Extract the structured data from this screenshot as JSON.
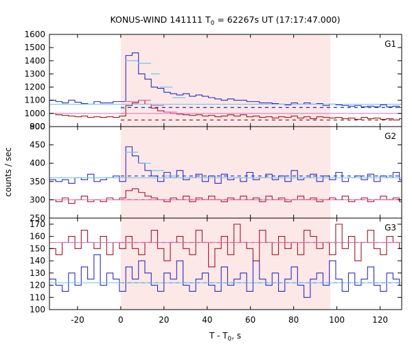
{
  "chart_data": {
    "type": "line",
    "title": "KONUS-WIND 141111 T",
    "title_sub": "0",
    "title_rest": " = 62267s UT (17:17:47.000)",
    "xlabel": "T - T",
    "xlabel_sub": "0",
    "xlabel_rest": ", s",
    "ylabel": "counts / sec",
    "xlim": [
      -33,
      130
    ],
    "xticks": [
      -20,
      0,
      20,
      40,
      60,
      80,
      100,
      120
    ],
    "highlight_interval": [
      0,
      97
    ],
    "colors": {
      "highlight": "#fde8e8",
      "hard_band": "#2b2bbf",
      "soft_band": "#a01525",
      "fine_hard": "#6cc5e6",
      "fine_soft": "#e26cb8",
      "bg_hard": "#2222aa",
      "bg_soft": "#8b0a12"
    },
    "panels": [
      {
        "label": "G1",
        "ylim": [
          900,
          1600
        ],
        "yticks": [
          900,
          1000,
          1100,
          1200,
          1300,
          1400,
          1500,
          1600
        ],
        "extra_bottom_tick": 800,
        "step": 2.944,
        "background": {
          "hard": 1045,
          "soft": 950
        },
        "series": [
          {
            "name": "",
            "role": "hard_band",
            "start": -33,
            "values": [
              1100,
              1090,
              1080,
              1100,
              1085,
              1075,
              1070,
              1090,
              1080,
              1080,
              1090,
              1090,
              1440,
              1460,
              1300,
              1260,
              1200,
              1190,
              1160,
              1150,
              1140,
              1150,
              1130,
              1140,
              1130,
              1120,
              1110,
              1100,
              1110,
              1100,
              1100,
              1090,
              1090,
              1080,
              1080,
              1075,
              1070,
              1065,
              1080,
              1070,
              1080,
              1070,
              1075,
              1060,
              1070,
              1065,
              1060,
              1055,
              1060,
              1050,
              1055,
              1050,
              1065,
              1050,
              1055,
              1045,
              1050,
              1040,
              1050,
              1045,
              1040,
              1050,
              1035,
              1045,
              1040,
              1050
            ]
          },
          {
            "name": "",
            "role": "soft_band",
            "start": -33,
            "values": [
              1000,
              990,
              985,
              980,
              975,
              980,
              970,
              975,
              970,
              975,
              970,
              980,
              1060,
              1080,
              1100,
              1070,
              1040,
              1020,
              1010,
              1000,
              995,
              990,
              985,
              990,
              980,
              985,
              975,
              980,
              990,
              980,
              990,
              975,
              980,
              970,
              975,
              965,
              975,
              970,
              980,
              965,
              975,
              960,
              975,
              970,
              965,
              970,
              960,
              965,
              955,
              970,
              960,
              965,
              955,
              960,
              950,
              960,
              955,
              950,
              960,
              955,
              950,
              945,
              955,
              950,
              945,
              950
            ]
          },
          {
            "name": "",
            "role": "fine_hard",
            "start": -33,
            "step": 9.0,
            "values": [
              1070,
              1070,
              1070,
              1070,
              1070,
              1070,
              1070,
              1070,
              1070,
              1070,
              1070,
              1070,
              1070,
              1070,
              1070,
              1070,
              1070,
              1070,
              1070,
              1070
            ]
          },
          {
            "name": "",
            "role": "fine_soft",
            "start": -33,
            "step": 9.0,
            "values": [
              1000,
              1000,
              1000,
              1000,
              1000,
              1000,
              1000,
              1000,
              1000,
              1000,
              1000,
              1000,
              1000,
              1000,
              1000,
              1000,
              1000,
              1000,
              1000,
              1000
            ]
          }
        ],
        "fine_hard_burst": [
          {
            "x": [
              0,
              2
            ],
            "y": 1040
          },
          {
            "x": [
              2,
              8
            ],
            "y": 1400
          },
          {
            "x": [
              8,
              14
            ],
            "y": 1380
          },
          {
            "x": [
              14,
              18
            ],
            "y": 1300
          },
          {
            "x": [
              18,
              24
            ],
            "y": 1200
          },
          {
            "x": [
              24,
              30
            ],
            "y": 1120
          }
        ],
        "fine_soft_burst": [
          {
            "x": [
              0,
              2
            ],
            "y": 1000
          },
          {
            "x": [
              2,
              8
            ],
            "y": 1090
          },
          {
            "x": [
              8,
              14
            ],
            "y": 1100
          },
          {
            "x": [
              14,
              20
            ],
            "y": 1060
          },
          {
            "x": [
              20,
              26
            ],
            "y": 1010
          }
        ]
      },
      {
        "label": "G2",
        "ylim": [
          250,
          500
        ],
        "yticks": [
          250,
          300,
          350,
          400,
          450
        ],
        "step": 2.944,
        "background": {
          "hard": 365,
          "soft": 300
        },
        "series": [
          {
            "name": "",
            "role": "hard_band",
            "start": -33,
            "values": [
              355,
              350,
              355,
              345,
              360,
              355,
              370,
              350,
              355,
              360,
              365,
              350,
              445,
              420,
              400,
              380,
              365,
              350,
              375,
              360,
              380,
              355,
              360,
              370,
              350,
              365,
              345,
              370,
              355,
              360,
              350,
              375,
              355,
              360,
              370,
              355,
              365,
              350,
              380,
              355,
              360,
              370,
              350,
              365,
              355,
              375,
              350,
              360,
              365,
              355,
              370,
              350,
              365,
              360,
              375,
              355,
              360,
              350,
              370,
              360,
              365,
              355,
              370,
              360,
              350,
              365
            ]
          },
          {
            "name": "",
            "role": "soft_band",
            "start": -33,
            "values": [
              300,
              295,
              305,
              290,
              300,
              310,
              295,
              300,
              295,
              305,
              300,
              305,
              325,
              330,
              320,
              310,
              305,
              300,
              295,
              305,
              300,
              310,
              295,
              305,
              300,
              310,
              300,
              295,
              305,
              300,
              310,
              300,
              305,
              295,
              310,
              300,
              305,
              295,
              300,
              310,
              300,
              305,
              295,
              300,
              305,
              300,
              310,
              295,
              300,
              305,
              295,
              300,
              310,
              300,
              305,
              295,
              300,
              310,
              295,
              305,
              300,
              295,
              305,
              300,
              310,
              300
            ]
          },
          {
            "name": "",
            "role": "fine_hard",
            "start": -33,
            "step": 9.0,
            "values": [
              360,
              360,
              360,
              360,
              360,
              360,
              360,
              360,
              360,
              360,
              360,
              360,
              360,
              360,
              360,
              360,
              360,
              360,
              360,
              360
            ]
          },
          {
            "name": "",
            "role": "fine_soft",
            "start": -33,
            "step": 9.0,
            "values": [
              300,
              300,
              300,
              300,
              300,
              300,
              300,
              300,
              300,
              300,
              300,
              300,
              300,
              300,
              300,
              300,
              300,
              300,
              300,
              300
            ]
          }
        ],
        "fine_hard_burst": [
          {
            "x": [
              2,
              8
            ],
            "y": 430
          },
          {
            "x": [
              8,
              14
            ],
            "y": 400
          },
          {
            "x": [
              14,
              20
            ],
            "y": 380
          },
          {
            "x": [
              20,
              26
            ],
            "y": 365
          }
        ],
        "fine_soft_burst": []
      },
      {
        "label": "G3",
        "ylim": [
          100,
          175
        ],
        "yticks": [
          100,
          110,
          120,
          130,
          140,
          150,
          160,
          170
        ],
        "step": 2.944,
        "background": {
          "hard": 122,
          "soft": 155
        },
        "series": [
          {
            "name": "",
            "role": "hard_band",
            "start": -33,
            "values": [
              125,
              120,
              115,
              130,
              120,
              135,
              125,
              145,
              120,
              130,
              125,
              115,
              135,
              125,
              140,
              130,
              120,
              115,
              130,
              125,
              140,
              120,
              115,
              125,
              130,
              120,
              115,
              135,
              120,
              125,
              130,
              115,
              140,
              125,
              120,
              130,
              115,
              125,
              135,
              120,
              110,
              125,
              130,
              120,
              140,
              125,
              115,
              130,
              120,
              125,
              135,
              120,
              115,
              130,
              125,
              120,
              110,
              125,
              135,
              120,
              115,
              125,
              130,
              120,
              125,
              115
            ]
          },
          {
            "name": "",
            "role": "soft_band",
            "start": -33,
            "values": [
              150,
              145,
              155,
              160,
              150,
              165,
              155,
              150,
              160,
              145,
              155,
              150,
              160,
              150,
              145,
              155,
              165,
              150,
              140,
              155,
              160,
              150,
              145,
              165,
              155,
              135,
              150,
              160,
              145,
              170,
              155,
              150,
              140,
              165,
              155,
              145,
              160,
              150,
              155,
              145,
              165,
              160,
              150,
              155,
              145,
              170,
              150,
              160,
              140,
              155,
              165,
              150,
              145,
              160,
              155,
              150,
              140,
              165,
              150,
              160,
              145,
              155,
              165,
              150,
              145,
              160
            ]
          },
          {
            "name": "",
            "role": "fine_hard",
            "start": -33,
            "step": 9.0,
            "values": [
              122,
              122,
              122,
              122,
              122,
              122,
              122,
              122,
              122,
              122,
              122,
              122,
              122,
              122,
              122,
              122,
              122,
              122,
              122,
              122
            ]
          },
          {
            "name": "",
            "role": "fine_soft",
            "start": -33,
            "step": 9.0,
            "values": [
              155,
              155,
              155,
              155,
              155,
              155,
              155,
              155,
              155,
              155,
              155,
              155,
              155,
              155,
              155,
              155,
              155,
              155,
              155,
              155
            ]
          }
        ],
        "fine_hard_burst": [],
        "fine_soft_burst": []
      }
    ]
  }
}
